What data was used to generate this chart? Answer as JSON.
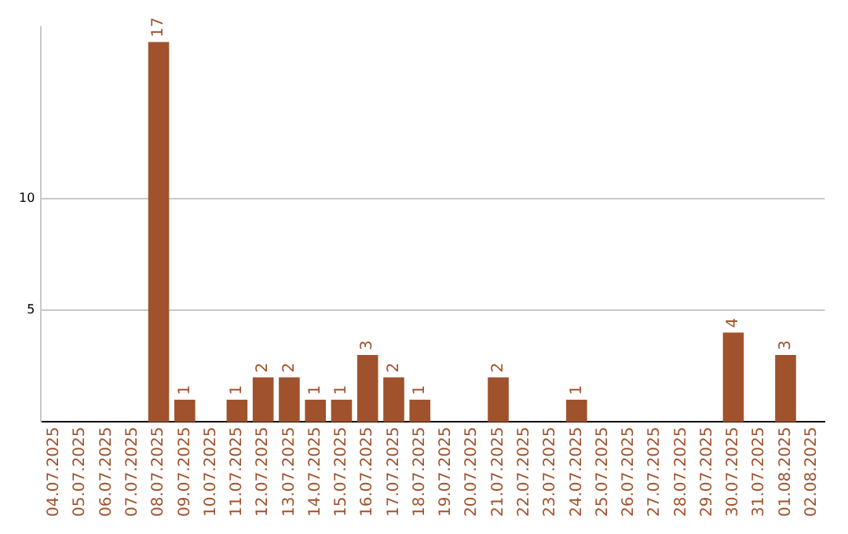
{
  "chart_data": {
    "type": "bar",
    "categories": [
      "04.07.2025",
      "05.07.2025",
      "06.07.2025",
      "07.07.2025",
      "08.07.2025",
      "09.07.2025",
      "10.07.2025",
      "11.07.2025",
      "12.07.2025",
      "13.07.2025",
      "14.07.2025",
      "15.07.2025",
      "16.07.2025",
      "17.07.2025",
      "18.07.2025",
      "19.07.2025",
      "20.07.2025",
      "21.07.2025",
      "22.07.2025",
      "23.07.2025",
      "24.07.2025",
      "25.07.2025",
      "26.07.2025",
      "27.07.2025",
      "28.07.2025",
      "29.07.2025",
      "30.07.2025",
      "31.07.2025",
      "01.08.2025",
      "02.08.2025"
    ],
    "values": [
      0,
      0,
      0,
      0,
      17,
      1,
      0,
      1,
      2,
      2,
      1,
      1,
      3,
      2,
      1,
      0,
      0,
      2,
      0,
      0,
      1,
      0,
      0,
      0,
      0,
      0,
      4,
      0,
      3,
      0
    ],
    "value_labels": [
      null,
      null,
      null,
      null,
      "17",
      "1",
      null,
      "1",
      "2",
      "2",
      "1",
      "1",
      "3",
      "2",
      "1",
      null,
      null,
      "2",
      null,
      null,
      "1",
      null,
      null,
      null,
      null,
      null,
      "4",
      null,
      "3",
      null
    ],
    "color": "#a0522d",
    "ylim": [
      0,
      17.7
    ],
    "yticks": [
      5,
      10
    ],
    "grid": "y"
  }
}
